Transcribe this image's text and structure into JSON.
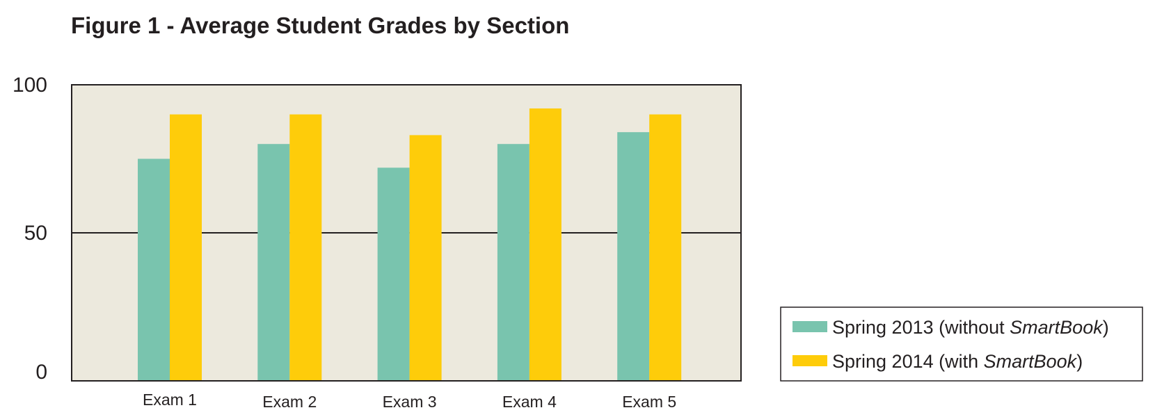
{
  "chart_data": {
    "type": "bar",
    "title": "Figure 1 - Average Student Grades by Section",
    "xlabel": "",
    "ylabel": "",
    "categories": [
      "Exam 1",
      "Exam 2",
      "Exam 3",
      "Exam 4",
      "Exam 5"
    ],
    "series": [
      {
        "name_prefix": "Spring 2013 (without ",
        "name_emphasis": "SmartBook",
        "name_suffix": ")",
        "color": "#79c4ae",
        "values": [
          75,
          80,
          72,
          80,
          84
        ]
      },
      {
        "name_prefix": "Spring 2014 (with ",
        "name_emphasis": "SmartBook",
        "name_suffix": ")",
        "color": "#fecc0a",
        "values": [
          90,
          90,
          83,
          92,
          90
        ]
      }
    ],
    "ylim": [
      0,
      100
    ],
    "yticks": [
      0,
      50,
      100
    ],
    "gridlines": [
      50
    ],
    "plot_background": "#ece9dd",
    "legend": "bottom-right"
  }
}
